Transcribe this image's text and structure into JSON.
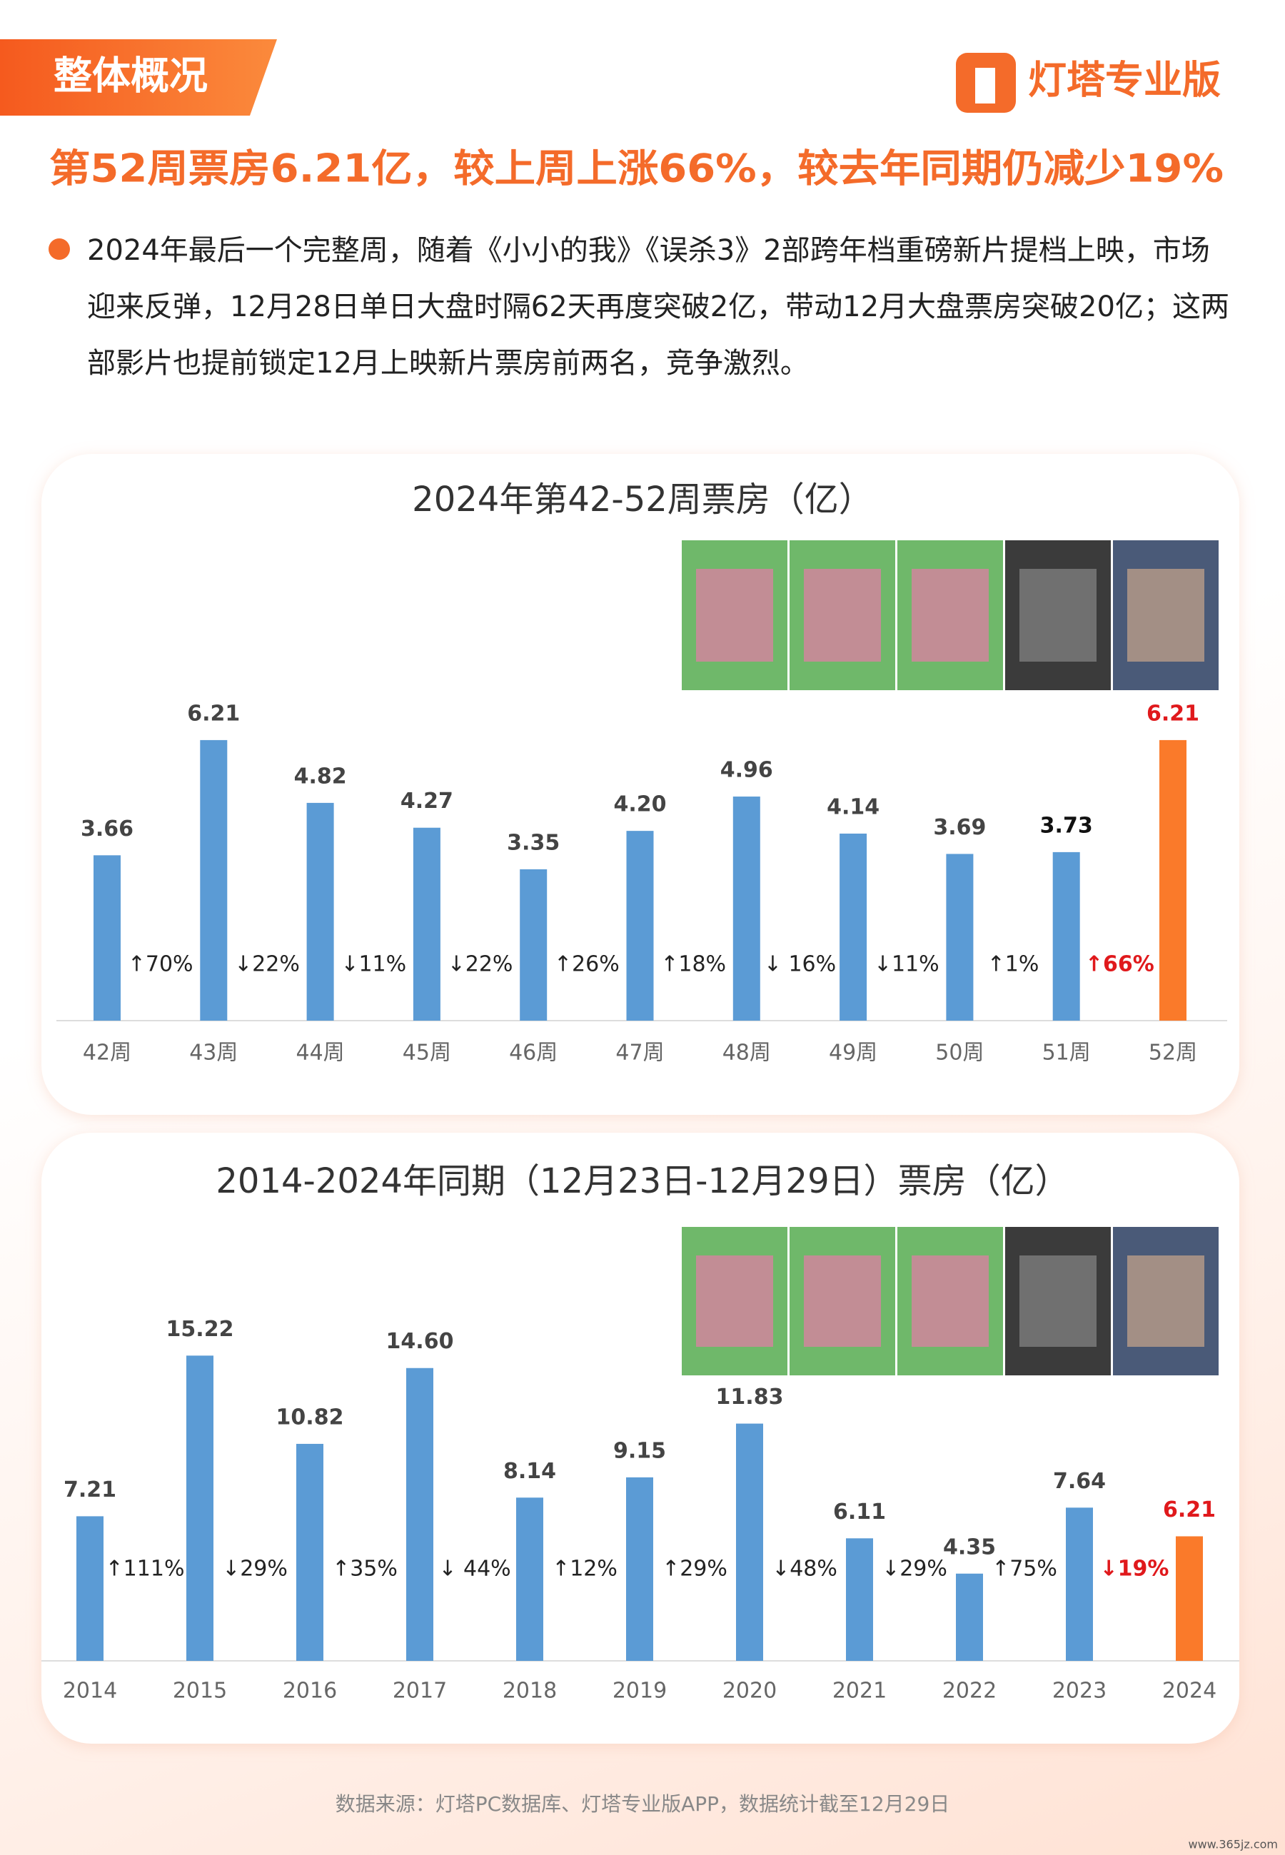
{
  "header": {
    "tag": "整体概况",
    "brand": "灯塔专业版"
  },
  "headline": "第52周票房6.21亿，较上周上涨66%，较去年同期仍减少19%",
  "bullet": "2024年最后一个完整周，随着《小小的我》《误杀3》2部跨年档重磅新片提档上映，市场迎来反弹，12月28日单日大盘时隔62天再度突破2亿，带动12月大盘票房突破20亿；这两部影片也提前锁定12月上映新片票房前两名，竞争激烈。",
  "source": "数据来源：灯塔PC数据库、灯塔专业版APP，数据统计截至12月29日",
  "watermark": "www.365jz.com",
  "chart_data": [
    {
      "type": "bar",
      "title": "2024年第42-52周票房（亿）",
      "categories": [
        "42周",
        "43周",
        "44周",
        "45周",
        "46周",
        "47周",
        "48周",
        "49周",
        "50周",
        "51周",
        "52周"
      ],
      "values": [
        3.66,
        6.21,
        4.82,
        4.27,
        3.35,
        4.2,
        4.96,
        4.14,
        3.69,
        3.73,
        6.21
      ],
      "value_labels": [
        "3.66",
        "6.21",
        "4.82",
        "4.27",
        "3.35",
        "4.20",
        "4.96",
        "4.14",
        "3.69",
        "3.73",
        "6.21"
      ],
      "colors": [
        "#5b9bd5",
        "#5b9bd5",
        "#5b9bd5",
        "#5b9bd5",
        "#5b9bd5",
        "#5b9bd5",
        "#5b9bd5",
        "#5b9bd5",
        "#5b9bd5",
        "#5b9bd5",
        "#fa7a2a"
      ],
      "label_colors": [
        "#444",
        "#444",
        "#444",
        "#444",
        "#444",
        "#444",
        "#444",
        "#444",
        "#444",
        "#111",
        "#e0191c"
      ],
      "changes": [
        "↑70%",
        "↓22%",
        "↓11%",
        "↓22%",
        "↑26%",
        "↑18%",
        "↓ 16%",
        "↓11%",
        "↑1%",
        "↑66%"
      ],
      "change_colors": [
        "#222",
        "#222",
        "#222",
        "#222",
        "#222",
        "#222",
        "#222",
        "#222",
        "#222",
        "#e0191c"
      ]
    },
    {
      "type": "bar",
      "title": "2014-2024年同期（12月23日-12月29日）票房（亿）",
      "categories": [
        "2014",
        "2015",
        "2016",
        "2017",
        "2018",
        "2019",
        "2020",
        "2021",
        "2022",
        "2023",
        "2024"
      ],
      "values": [
        7.21,
        15.22,
        10.82,
        14.6,
        8.14,
        9.15,
        11.83,
        6.11,
        4.35,
        7.64,
        6.21
      ],
      "value_labels": [
        "7.21",
        "15.22",
        "10.82",
        "14.60",
        "8.14",
        "9.15",
        "11.83",
        "6.11",
        "4.35",
        "7.64",
        "6.21"
      ],
      "colors": [
        "#5b9bd5",
        "#5b9bd5",
        "#5b9bd5",
        "#5b9bd5",
        "#5b9bd5",
        "#5b9bd5",
        "#5b9bd5",
        "#5b9bd5",
        "#5b9bd5",
        "#5b9bd5",
        "#fa7a2a"
      ],
      "label_colors": [
        "#444",
        "#444",
        "#444",
        "#444",
        "#444",
        "#444",
        "#444",
        "#444",
        "#444",
        "#444",
        "#e0191c"
      ],
      "changes": [
        "↑111%",
        "↓29%",
        "↑35%",
        "↓ 44%",
        "↑12%",
        "↑29%",
        "↓48%",
        "↓29%",
        "↑75%",
        "↓19%"
      ],
      "change_colors": [
        "#222",
        "#222",
        "#222",
        "#222",
        "#222",
        "#222",
        "#222",
        "#222",
        "#222",
        "#e0191c"
      ]
    }
  ]
}
